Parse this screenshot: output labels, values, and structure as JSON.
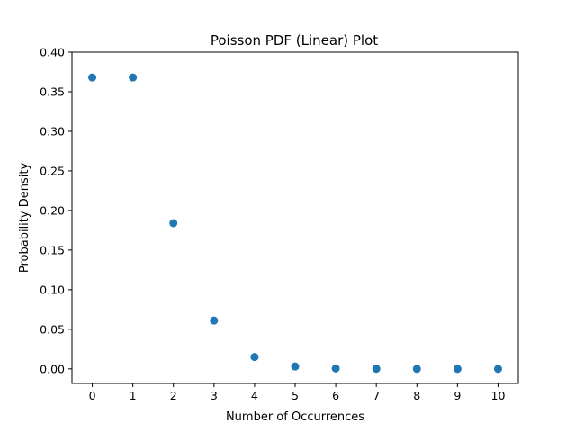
{
  "chart_data": {
    "type": "scatter",
    "title": "Poisson PDF (Linear) Plot",
    "xlabel": "Number of Occurrences",
    "ylabel": "Probability Density",
    "xlim": [
      -0.5,
      10.5
    ],
    "ylim": [
      -0.0184,
      0.4
    ],
    "xticks": [
      0,
      1,
      2,
      3,
      4,
      5,
      6,
      7,
      8,
      9,
      10
    ],
    "yticks": [
      0.0,
      0.05,
      0.1,
      0.15,
      0.2,
      0.25,
      0.3,
      0.35,
      0.4
    ],
    "ytick_labels": [
      "0.00",
      "0.05",
      "0.10",
      "0.15",
      "0.20",
      "0.25",
      "0.30",
      "0.35",
      "0.40"
    ],
    "grid": false,
    "marker_color": "#1f77b4",
    "points": [
      {
        "x": 0,
        "y": 0.368
      },
      {
        "x": 1,
        "y": 0.368
      },
      {
        "x": 2,
        "y": 0.184
      },
      {
        "x": 3,
        "y": 0.061
      },
      {
        "x": 4,
        "y": 0.015
      },
      {
        "x": 5,
        "y": 0.003
      },
      {
        "x": 6,
        "y": 0.0005
      },
      {
        "x": 7,
        "y": 0.0001
      },
      {
        "x": 8,
        "y": 0.0
      },
      {
        "x": 9,
        "y": 0.0
      },
      {
        "x": 10,
        "y": 0.0
      }
    ]
  }
}
